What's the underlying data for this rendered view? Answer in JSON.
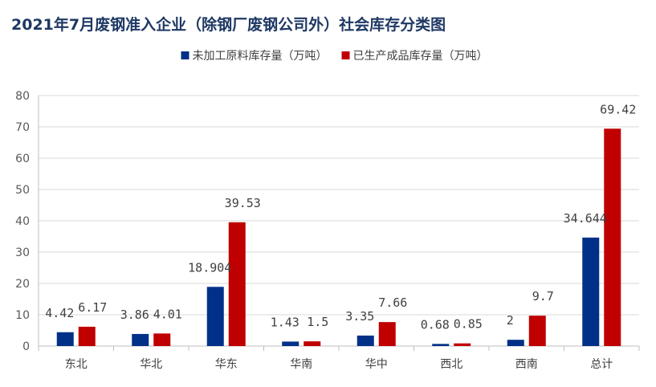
{
  "chart_data": {
    "type": "bar",
    "title": "2021年7月废钢准入企业（除钢厂废钢公司外）社会库存分类图",
    "categories": [
      "东北",
      "华北",
      "华东",
      "华南",
      "华中",
      "西北",
      "西南",
      "总计"
    ],
    "series": [
      {
        "name": "未加工原料库存量（万吨）",
        "color": "#003087",
        "values": [
          4.42,
          3.86,
          18.904,
          1.43,
          3.35,
          0.68,
          2,
          34.644
        ],
        "labels": [
          "4.42",
          "3.86",
          "18.904",
          "1.43",
          "3.35",
          "0.68",
          "2",
          "34.644"
        ]
      },
      {
        "name": "已生产成品库存量（万吨）",
        "color": "#c00000",
        "values": [
          6.17,
          4.01,
          39.53,
          1.5,
          7.66,
          0.85,
          9.7,
          69.42
        ],
        "labels": [
          "6.17",
          "4.01",
          "39.53",
          "1.5",
          "7.66",
          "0.85",
          "9.7",
          "69.42"
        ]
      }
    ],
    "yticks": [
      "0",
      "10",
      "20",
      "30",
      "40",
      "50",
      "60",
      "70",
      "80"
    ],
    "ylim": [
      0,
      80
    ],
    "grid": true,
    "legend": "top-center"
  }
}
